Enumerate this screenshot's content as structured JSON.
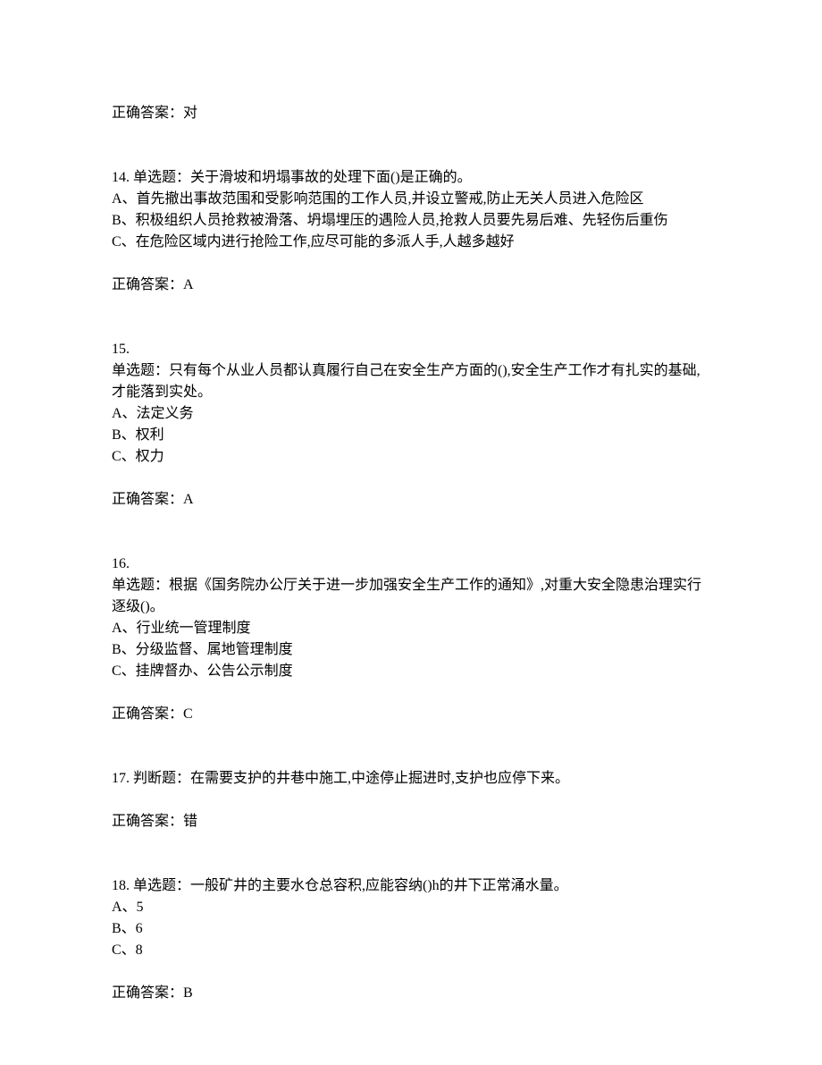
{
  "q13": {
    "answer_label": "正确答案：对"
  },
  "q14": {
    "question": "14.  单选题：关于滑坡和坍塌事故的处理下面()是正确的。",
    "optA": "A、首先撤出事故范围和受影响范围的工作人员,并设立警戒,防止无关人员进入危险区",
    "optB": "B、积极组织人员抢救被滑落、坍塌埋压的遇险人员,抢救人员要先易后难、先轻伤后重伤",
    "optC": "C、在危险区域内进行抢险工作,应尽可能的多派人手,人越多越好",
    "answer_label": "正确答案：A"
  },
  "q15": {
    "number": "15.",
    "question": "单选题：只有每个从业人员都认真履行自己在安全生产方面的(),安全生产工作才有扎实的基础,才能落到实处。",
    "optA": "A、法定义务",
    "optB": "B、权利",
    "optC": "C、权力",
    "answer_label": "正确答案：A"
  },
  "q16": {
    "number": "16.",
    "question": "单选题：根据《国务院办公厅关于进一步加强安全生产工作的通知》,对重大安全隐患治理实行逐级()。",
    "optA": "A、行业统一管理制度",
    "optB": "B、分级监督、属地管理制度",
    "optC": "C、挂牌督办、公告公示制度",
    "answer_label": "正确答案：C"
  },
  "q17": {
    "question": "17.  判断题：在需要支护的井巷中施工,中途停止掘进时,支护也应停下来。",
    "answer_label": "正确答案：错"
  },
  "q18": {
    "question": "18.  单选题：一般矿井的主要水仓总容积,应能容纳()h的井下正常涌水量。",
    "optA": "A、5",
    "optB": "B、6",
    "optC": "C、8",
    "answer_label": "正确答案：B"
  }
}
